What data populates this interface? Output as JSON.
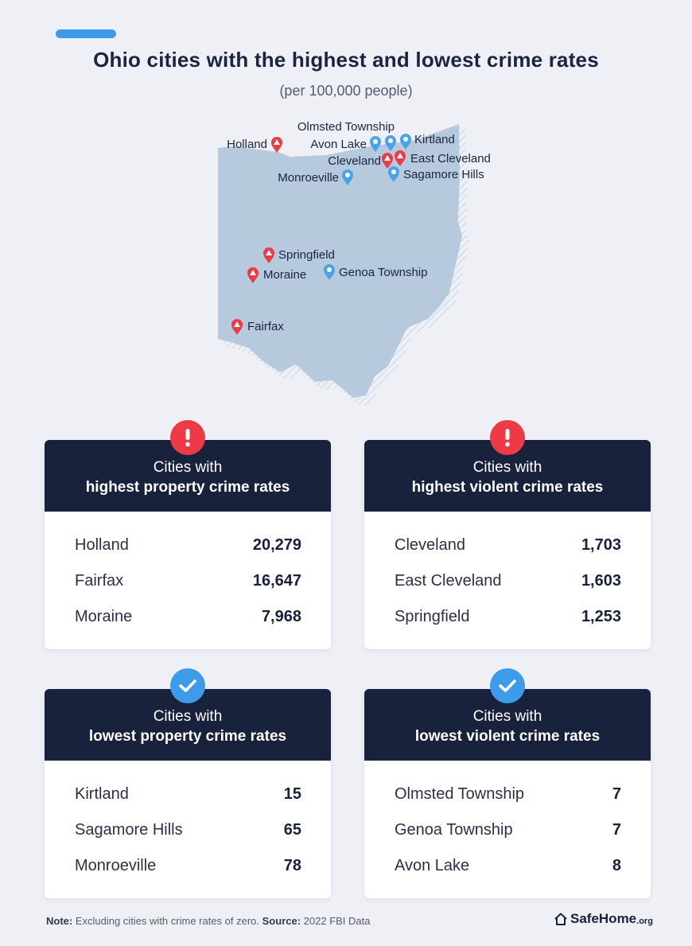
{
  "title": "Ohio cities with the highest and lowest crime rates",
  "subtitle": "(per 100,000 people)",
  "map": {
    "cities": [
      {
        "name": "Holland",
        "type": "high",
        "icon": "red-alert-pin"
      },
      {
        "name": "Olmsted Township",
        "type": "low",
        "icon": "blue-pin"
      },
      {
        "name": "Avon Lake",
        "type": "low",
        "icon": "blue-pin"
      },
      {
        "name": "Kirtland",
        "type": "low",
        "icon": "blue-pin"
      },
      {
        "name": "Cleveland",
        "type": "high",
        "icon": "red-alert-pin"
      },
      {
        "name": "East Cleveland",
        "type": "high",
        "icon": "red-alert-pin"
      },
      {
        "name": "Monroeville",
        "type": "low",
        "icon": "blue-pin"
      },
      {
        "name": "Sagamore Hills",
        "type": "low",
        "icon": "blue-pin"
      },
      {
        "name": "Springfield",
        "type": "high",
        "icon": "red-alert-pin"
      },
      {
        "name": "Moraine",
        "type": "high",
        "icon": "red-alert-pin"
      },
      {
        "name": "Genoa Township",
        "type": "low",
        "icon": "blue-pin"
      },
      {
        "name": "Fairfax",
        "type": "high",
        "icon": "red-alert-pin"
      }
    ],
    "colors": {
      "state": "#b7c9dc",
      "high": "#ec3b47",
      "low": "#4aa3e8"
    }
  },
  "cards": {
    "high_property": {
      "line1": "Cities with",
      "line2": "highest property crime rates",
      "icon": "exclamation-icon",
      "rows": [
        {
          "city": "Holland",
          "value": "20,279"
        },
        {
          "city": "Fairfax",
          "value": "16,647"
        },
        {
          "city": "Moraine",
          "value": "7,968"
        }
      ]
    },
    "high_violent": {
      "line1": "Cities with",
      "line2": "highest violent crime rates",
      "icon": "exclamation-icon",
      "rows": [
        {
          "city": "Cleveland",
          "value": "1,703"
        },
        {
          "city": "East Cleveland",
          "value": "1,603"
        },
        {
          "city": "Springfield",
          "value": "1,253"
        }
      ]
    },
    "low_property": {
      "line1": "Cities with",
      "line2": "lowest property crime rates",
      "icon": "checkmark-icon",
      "rows": [
        {
          "city": "Kirtland",
          "value": "15"
        },
        {
          "city": "Sagamore Hills",
          "value": "65"
        },
        {
          "city": "Monroeville",
          "value": "78"
        }
      ]
    },
    "low_violent": {
      "line1": "Cities with",
      "line2": "lowest violent crime rates",
      "icon": "checkmark-icon",
      "rows": [
        {
          "city": "Olmsted Township",
          "value": "7"
        },
        {
          "city": "Genoa Township",
          "value": "7"
        },
        {
          "city": "Avon Lake",
          "value": "8"
        }
      ]
    }
  },
  "footer": {
    "note_label": "Note:",
    "note_text": " Excluding cities with crime rates of zero. ",
    "source_label": "Source:",
    "source_text": " 2022 FBI Data"
  },
  "logo": {
    "name": "SafeHome",
    "suffix": ".org",
    "icon": "house-icon"
  }
}
